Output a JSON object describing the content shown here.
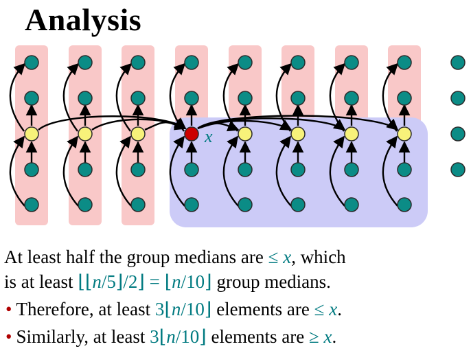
{
  "slide": {
    "title": "Analysis",
    "median_label": "x",
    "colors": {
      "group_bg": "#f9c8c8",
      "half_bg": "#cccbf7",
      "node_teal": "#0b8c86",
      "node_median": "#f7f27a",
      "node_x": "#cc0000",
      "label_teal": "#007a80",
      "bullet_red": "#b00000"
    },
    "lines": {
      "l1_a": "At least half the group medians are ",
      "l1_b": "≤ ",
      "l1_x": "x",
      "l1_c": ", which",
      "l2_a": "is at least ",
      "l2_b": "⌊⌊",
      "l2_n1": "n",
      "l2_c": "/5⌋/2⌋ = ⌊",
      "l2_n2": "n",
      "l2_d": "/10⌋",
      "l2_e": " group medians.",
      "l3_bullet": "•",
      "l3_a": "Therefore, at least ",
      "l3_b": "3⌊",
      "l3_n": "n",
      "l3_c": "/10⌋",
      "l3_d": " elements are ",
      "l3_e": "≤ ",
      "l3_x": "x",
      "l3_f": ".",
      "l4_bullet": "•",
      "l4_a": "Similarly, at least ",
      "l4_b": "3⌊",
      "l4_n": "n",
      "l4_c": "/10⌋",
      "l4_d": " elements are ",
      "l4_e": "≥ ",
      "l4_x": "x",
      "l4_f": "."
    }
  }
}
